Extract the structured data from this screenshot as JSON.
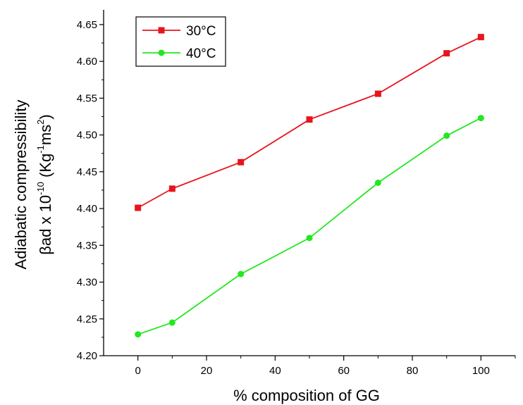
{
  "chart_data": {
    "type": "line",
    "xlabel": "% composition of GG",
    "ylabel_line1": "Adiabatic compressibility",
    "ylabel_line2": {
      "main": "βad x 10",
      "exp": "-10",
      "unit_open": " (Kg",
      "unit_exp1": "-1",
      "unit_mid": "ms",
      "unit_exp2": "2",
      "unit_close": ")"
    },
    "xlim": [
      -10,
      110
    ],
    "ylim": [
      4.2,
      4.67
    ],
    "x_ticks": [
      0,
      20,
      40,
      60,
      80,
      100
    ],
    "x_tick_labels": [
      "0",
      "20",
      "40",
      "60",
      "80",
      "100"
    ],
    "y_ticks": [
      4.2,
      4.25,
      4.3,
      4.35,
      4.4,
      4.45,
      4.5,
      4.55,
      4.6,
      4.65
    ],
    "y_tick_labels": [
      "4.20",
      "4.25",
      "4.30",
      "4.35",
      "4.40",
      "4.45",
      "4.50",
      "4.55",
      "4.60",
      "4.65"
    ],
    "grid": false,
    "legend_position": "top-left",
    "x": [
      0,
      10,
      30,
      50,
      70,
      90,
      100
    ],
    "series": [
      {
        "name": "30°C",
        "color": "#e8141c",
        "marker": "square",
        "values": [
          4.401,
          4.427,
          4.463,
          4.521,
          4.556,
          4.611,
          4.633
        ]
      },
      {
        "name": "40°C",
        "color": "#22e81e",
        "marker": "circle",
        "values": [
          4.229,
          4.245,
          4.311,
          4.36,
          4.435,
          4.499,
          4.523
        ]
      }
    ]
  }
}
